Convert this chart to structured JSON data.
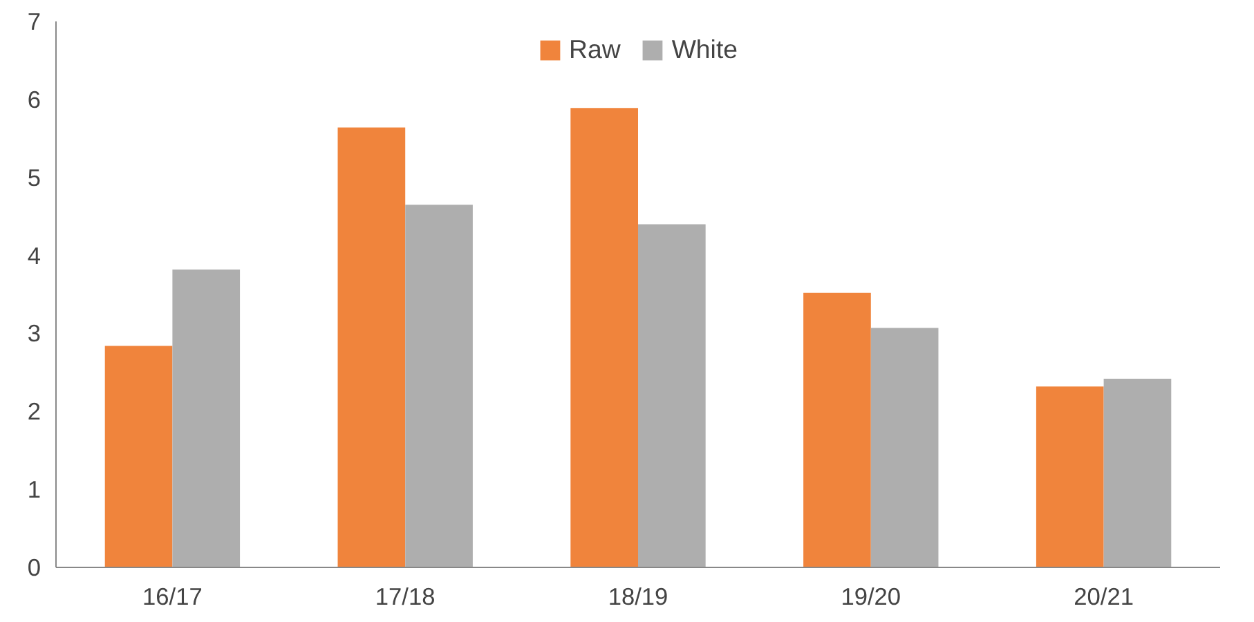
{
  "chart_data": {
    "type": "bar",
    "categories": [
      "16/17",
      "17/18",
      "18/19",
      "19/20",
      "20/21"
    ],
    "series": [
      {
        "name": "Raw",
        "color": "#f0843c",
        "values": [
          2.84,
          5.64,
          5.89,
          3.52,
          2.32
        ]
      },
      {
        "name": "White",
        "color": "#aeaeae",
        "values": [
          3.82,
          4.65,
          4.4,
          3.07,
          2.42
        ]
      }
    ],
    "ylim": [
      0,
      7
    ],
    "yticks": [
      0,
      1,
      2,
      3,
      4,
      5,
      6,
      7
    ],
    "grid": false,
    "legend": "top"
  }
}
